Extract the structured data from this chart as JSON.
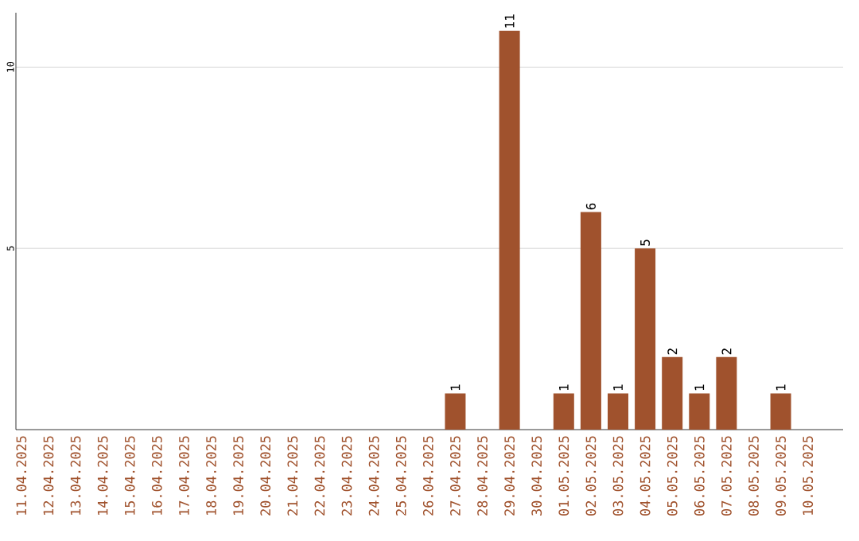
{
  "chart_data": {
    "type": "bar",
    "categories": [
      "11.04.2025",
      "12.04.2025",
      "13.04.2025",
      "14.04.2025",
      "15.04.2025",
      "16.04.2025",
      "17.04.2025",
      "18.04.2025",
      "19.04.2025",
      "20.04.2025",
      "21.04.2025",
      "22.04.2025",
      "23.04.2025",
      "24.04.2025",
      "25.04.2025",
      "26.04.2025",
      "27.04.2025",
      "28.04.2025",
      "29.04.2025",
      "30.04.2025",
      "01.05.2025",
      "02.05.2025",
      "03.05.2025",
      "04.05.2025",
      "05.05.2025",
      "06.05.2025",
      "07.05.2025",
      "08.05.2025",
      "09.05.2025",
      "10.05.2025"
    ],
    "values": [
      0,
      0,
      0,
      0,
      0,
      0,
      0,
      0,
      0,
      0,
      0,
      0,
      0,
      0,
      0,
      0,
      1,
      0,
      11,
      0,
      1,
      6,
      1,
      5,
      2,
      1,
      2,
      0,
      1,
      0
    ],
    "value_labels": [
      null,
      null,
      null,
      null,
      null,
      null,
      null,
      null,
      null,
      null,
      null,
      null,
      null,
      null,
      null,
      null,
      "1",
      null,
      "11",
      null,
      "1",
      "6",
      "1",
      "5",
      "2",
      "1",
      "2",
      null,
      "1",
      null
    ],
    "color": "#a0522d",
    "ylim": [
      0,
      11.5
    ],
    "yticks": [
      5,
      10
    ],
    "grid": "y"
  }
}
